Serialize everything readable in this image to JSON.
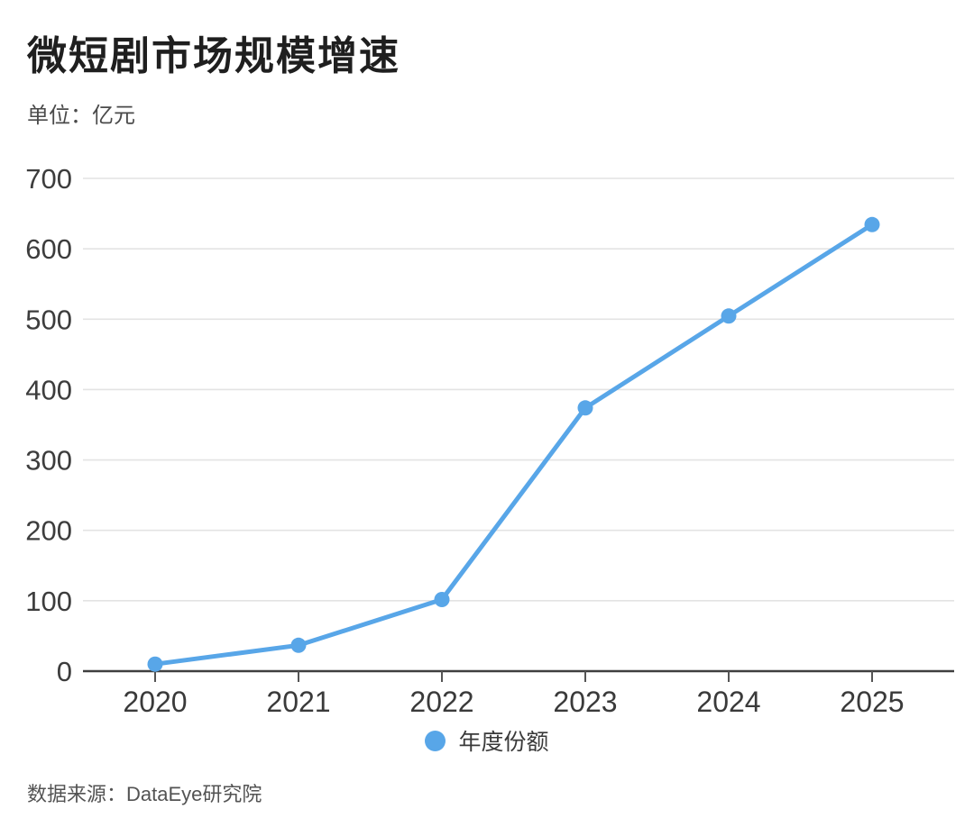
{
  "header": {
    "title": "微短剧市场规模增速",
    "unit_label": "单位：亿元"
  },
  "legend": {
    "label": "年度份额",
    "marker_color": "#58a6e8"
  },
  "footer": {
    "source": "数据来源：DataEye研究院"
  },
  "colors": {
    "line": "#58a6e8",
    "point": "#58a6e8",
    "grid": "#e3e3e3",
    "axis": "#3f3f3f",
    "tick": "#555555"
  },
  "chart_data": {
    "type": "line",
    "title": "微短剧市场规模增速",
    "unit": "亿元",
    "categories": [
      "2020",
      "2021",
      "2022",
      "2023",
      "2024",
      "2025"
    ],
    "series": [
      {
        "name": "年度份额",
        "values": [
          10,
          36.7,
          101.7,
          373.9,
          504.4,
          634.3
        ]
      }
    ],
    "ylim": [
      0,
      700
    ],
    "yticks": [
      0,
      100,
      200,
      300,
      400,
      500,
      600,
      700
    ],
    "grid": "horizontal",
    "legend_position": "bottom",
    "source": "数据来源：DataEye研究院"
  }
}
